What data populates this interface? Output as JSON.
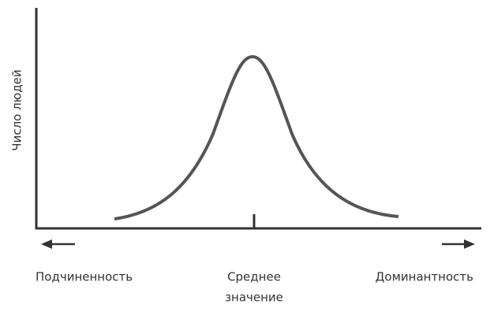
{
  "y_axis_label": "Число людей",
  "x_labels": {
    "left": "Подчиненность",
    "center": [
      "Среднее",
      "значение"
    ],
    "right": "Доминантность"
  }
}
